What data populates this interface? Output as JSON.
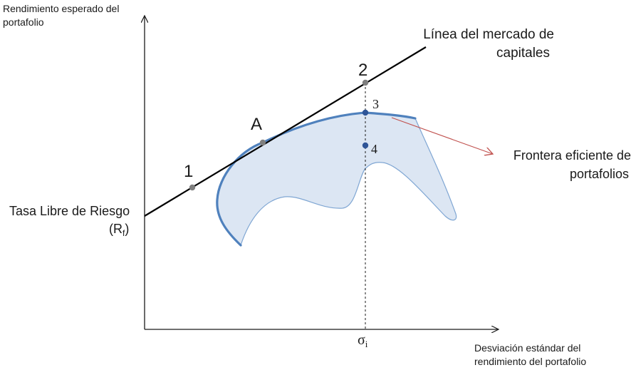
{
  "axes": {
    "y_label_line1": "Rendimiento esperado del",
    "y_label_line2": "portafolio",
    "x_label_line1": "Desviación estándar del",
    "x_label_line2": "rendimiento del portafolio",
    "x_tick_sigma": "σ",
    "x_tick_sub": "i"
  },
  "cml": {
    "label_line1": "Línea del mercado de",
    "label_line2": "capitales"
  },
  "risk_free": {
    "label_line1": "Tasa Libre de Riesgo",
    "label_line2_open": "(R",
    "label_line2_sub": "f",
    "label_line2_close": ")"
  },
  "frontier": {
    "label_line1": "Frontera eficiente de",
    "label_line2": "portafolios"
  },
  "points": {
    "p1": "1",
    "pA": "A",
    "p2": "2",
    "p3": "3",
    "p4": "4"
  },
  "colors": {
    "axis": "#1a1a1a",
    "cml": "#000000",
    "region_fill": "#dce6f3",
    "region_edge": "#7fa6d3",
    "frontier": "#4f81bd",
    "point_gray": "#7f7f7f",
    "point_blue": "#2f5597",
    "arrow": "#c0504d"
  }
}
